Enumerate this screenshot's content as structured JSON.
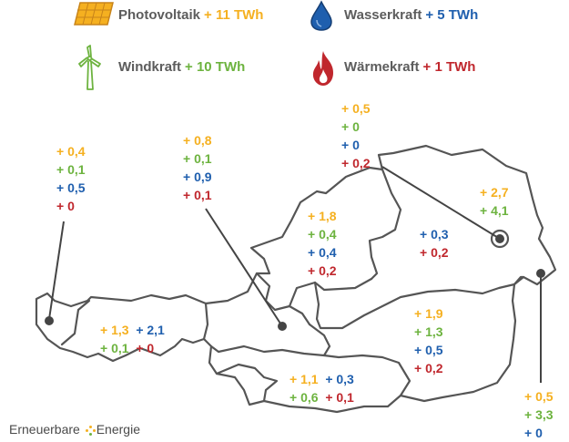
{
  "legend": {
    "photovoltaik": {
      "name": "Photovoltaik",
      "amount": "+ 11 TWh",
      "icon": "solar-panel-icon",
      "color": "#f5b020"
    },
    "windkraft": {
      "name": "Windkraft",
      "amount": "+ 10 TWh",
      "icon": "wind-turbine-icon",
      "color": "#6db33f"
    },
    "wasserkraft": {
      "name": "Wasserkraft",
      "amount": "+ 5 TWh",
      "icon": "water-drop-icon",
      "color": "#1f5fae"
    },
    "waermekraft": {
      "name": "Wärmekraft",
      "amount": "+ 1 TWh",
      "icon": "flame-icon",
      "color": "#c0272d"
    }
  },
  "regions": {
    "vorarlberg": {
      "pv": "+ 0,4",
      "wind": "+ 0,1",
      "hydro": "+ 0,5",
      "heat": "+ 0"
    },
    "tirol": {
      "pv": "+ 1,3",
      "wind": "+ 0,1",
      "hydro": "+ 2,1",
      "heat": "+ 0"
    },
    "salzburg": {
      "pv": "+ 0,8",
      "wind": "+ 0,1",
      "hydro": "+ 0,9",
      "heat": "+ 0,1"
    },
    "oberoesterreich": {
      "pv": "+ 1,8",
      "wind": "+ 0,4",
      "hydro": "+ 0,4",
      "heat": "+ 0,2"
    },
    "niederoesterreich": {
      "pv": "+ 2,7",
      "wind": "+ 4,1",
      "hydro": "+ 0,3",
      "heat": "+ 0,2"
    },
    "wien": {
      "pv": "+ 0,5",
      "wind": "+ 0",
      "hydro": "+ 0",
      "heat": "+ 0,2"
    },
    "steiermark": {
      "pv": "+ 1,9",
      "wind": "+ 1,3",
      "hydro": "+ 0,5",
      "heat": "+ 0,2"
    },
    "kaernten": {
      "pv": "+ 1,1",
      "wind": "+ 0,6",
      "hydro": "+ 0,3",
      "heat": "+ 0,1"
    },
    "burgenland": {
      "pv": "+ 0,5",
      "wind": "+ 3,3",
      "hydro": "+ 0"
    }
  },
  "brand": {
    "word1": "Erneuerbare",
    "word2": "Energie"
  }
}
